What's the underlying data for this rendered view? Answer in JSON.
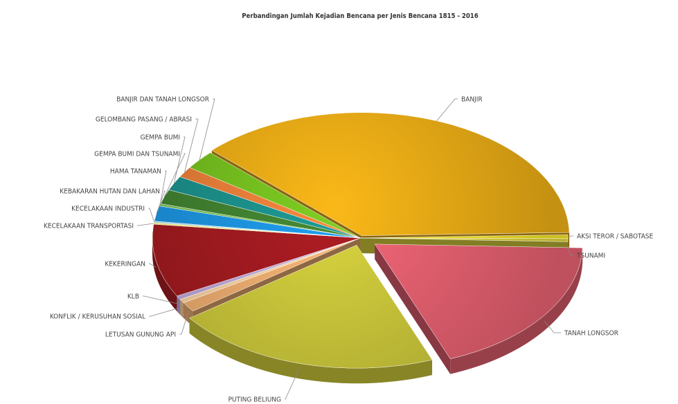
{
  "chart_data": {
    "type": "pie",
    "title": "Perbandingan Jumlah Kejadian Bencana per Jenis Bencana 1815 - 2016",
    "style": "3d-exploded",
    "slices": [
      {
        "label": "AKSI TEROR / SABOTASE",
        "value": 0.5,
        "color": "#e6d820"
      },
      {
        "label": "TSUNAMI",
        "value": 0.4,
        "color": "#d4c93a"
      },
      {
        "label": "TANAH LONGSOR",
        "value": 18.6,
        "color": "#d95b6a"
      },
      {
        "label": "PUTING BELIUNG",
        "value": 20.8,
        "color": "#c2be38"
      },
      {
        "label": "LETUSAN GUNUNG API",
        "value": 1.3,
        "color": "#e3a66b"
      },
      {
        "label": "KONFLIK / KERUSUHAN SOSIAL",
        "value": 0.5,
        "color": "#f0c89c"
      },
      {
        "label": "KLB",
        "value": 0.5,
        "color": "#b4a2d0"
      },
      {
        "label": "KEKERINGAN",
        "value": 9.6,
        "color": "#9c1a1f"
      },
      {
        "label": "KECELAKAAN TRANSPORTASI",
        "value": 0.2,
        "color": "#f3ed6a"
      },
      {
        "label": "KECELAKAAN INDUSTRI",
        "value": 0.2,
        "color": "#a7d7ee"
      },
      {
        "label": "KEBAKARAN HUTAN DAN LAHAN",
        "value": 2.0,
        "color": "#1c8fd8"
      },
      {
        "label": "HAMA TANAMAN",
        "value": 0.3,
        "color": "#75b94c"
      },
      {
        "label": "GEMPA BUMI DAN TSUNAMI",
        "value": 1.9,
        "color": "#3f7d2f"
      },
      {
        "label": "GEMPA BUMI",
        "value": 1.9,
        "color": "#1b8b86"
      },
      {
        "label": "GELOMBANG PASANG / ABRASI",
        "value": 1.4,
        "color": "#e07a37"
      },
      {
        "label": "BANJIR DAN TANAH LONGSOR",
        "value": 2.5,
        "color": "#71b81e"
      },
      {
        "label": "BANJIR",
        "value": 37.4,
        "color": "#e0a515"
      }
    ]
  }
}
